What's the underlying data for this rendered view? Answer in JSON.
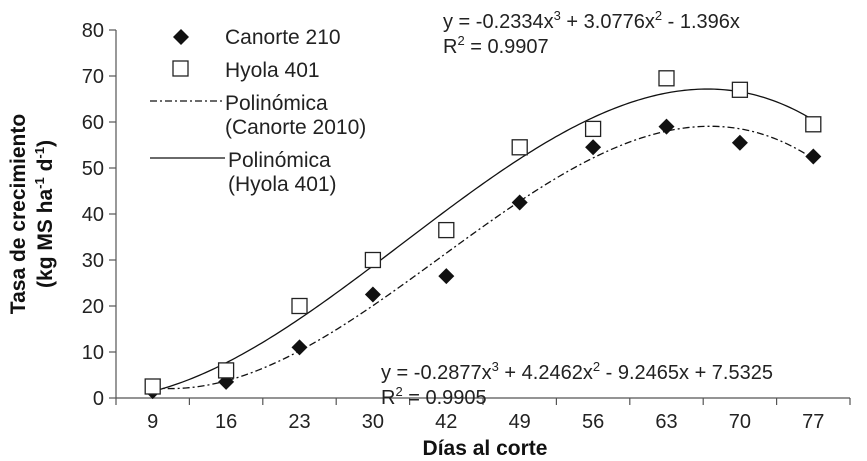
{
  "chart_data": {
    "type": "scatter",
    "xlabel": "Días al corte",
    "ylabel_line1": "Tasa de crecimiento",
    "ylabel_line2_base": "(kg MS ha",
    "ylabel_line2_exp1": "-1",
    "ylabel_line2_mid": " d",
    "ylabel_line2_exp2": "-1",
    "ylabel_line2_end": ")",
    "categories": [
      "9",
      "16",
      "23",
      "30",
      "42",
      "49",
      "56",
      "63",
      "70",
      "77"
    ],
    "ylim": [
      0,
      80
    ],
    "yticks": [
      "0",
      "10",
      "20",
      "30",
      "40",
      "50",
      "60",
      "70",
      "80"
    ],
    "grid": false,
    "series": [
      {
        "name": "Canorte 210",
        "marker": "diamond",
        "color": "#111111",
        "values": [
          1.5,
          3.5,
          11,
          22.5,
          26.5,
          42.5,
          54.5,
          59,
          55.5,
          52.5
        ]
      },
      {
        "name": "Hyola 401",
        "marker": "square-open",
        "color": "#111111",
        "values": [
          2.5,
          6,
          20,
          30,
          36.5,
          54.5,
          58.5,
          69.5,
          67,
          59.5
        ]
      }
    ],
    "trendlines": [
      {
        "legend_line1": "Polinómica",
        "legend_line2": "(Canorte 2010)",
        "style": "dash-dot",
        "coefficients": [
          -0.2877,
          4.2462,
          -9.2465,
          7.5325
        ]
      },
      {
        "legend_line1": "Polinómica",
        "legend_line2": "(Hyola 401)",
        "style": "solid",
        "coefficients": [
          -0.2334,
          3.0776,
          -1.396,
          0
        ]
      }
    ],
    "equations": {
      "hyola_line1_parts": [
        "y = -0.2334x",
        "3",
        " + 3.0776x",
        "2",
        " - 1.396x"
      ],
      "hyola_r2_parts": [
        "R",
        "2",
        " = 0.9907"
      ],
      "canorte_line1_parts": [
        "y = -0.2877x",
        "3",
        " + 4.2462x",
        "2",
        " - 9.2465x + 7.5325"
      ],
      "canorte_r2_parts": [
        "R",
        "2",
        " = 0.9905"
      ]
    },
    "legend_position": "top-left"
  }
}
